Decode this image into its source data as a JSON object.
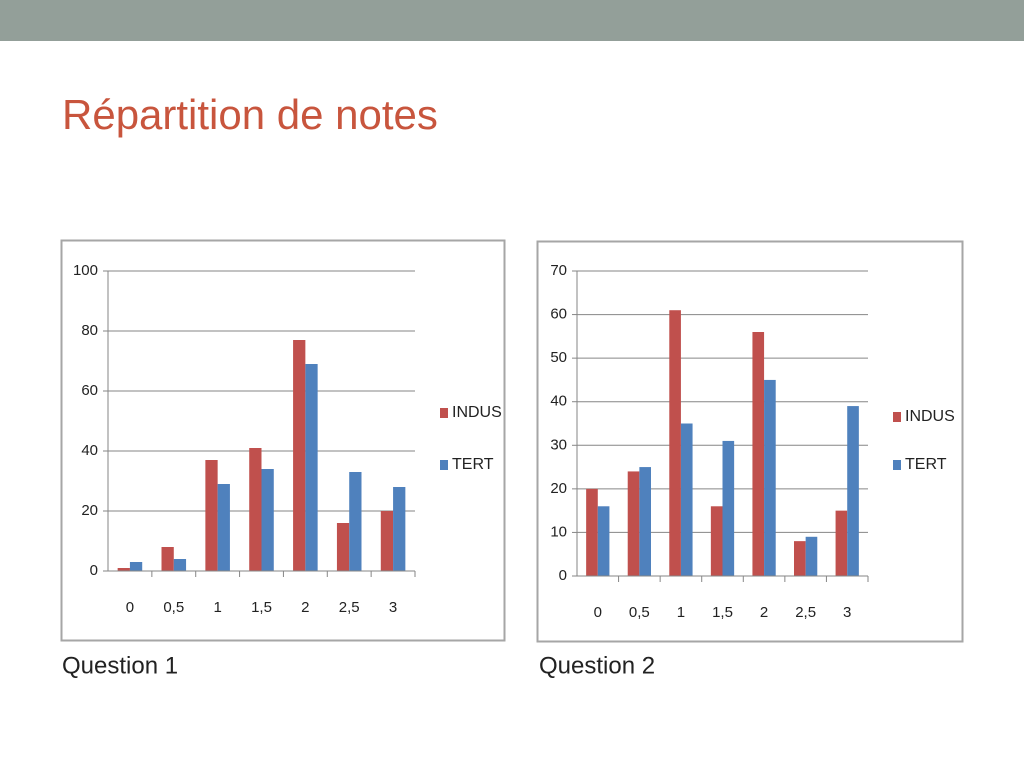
{
  "title": "Répartition de notes",
  "chart_data": [
    {
      "type": "bar",
      "caption": "Question 1",
      "categories": [
        "0",
        "0,5",
        "1",
        "1,5",
        "2",
        "2,5",
        "3"
      ],
      "series": [
        {
          "name": "INDUS",
          "color": "#c0504d",
          "values": [
            1,
            8,
            37,
            41,
            77,
            16,
            20
          ]
        },
        {
          "name": "TERT",
          "color": "#4f81bd",
          "values": [
            3,
            4,
            29,
            34,
            69,
            33,
            28
          ]
        }
      ],
      "ylim": [
        0,
        100
      ],
      "yticks": [
        0,
        20,
        40,
        60,
        80,
        100
      ],
      "grid": true,
      "legend": "right"
    },
    {
      "type": "bar",
      "caption": "Question 2",
      "categories": [
        "0",
        "0,5",
        "1",
        "1,5",
        "2",
        "2,5",
        "3"
      ],
      "series": [
        {
          "name": "INDUS",
          "color": "#c0504d",
          "values": [
            20,
            24,
            61,
            16,
            56,
            8,
            15
          ]
        },
        {
          "name": "TERT",
          "color": "#4f81bd",
          "values": [
            16,
            25,
            35,
            31,
            45,
            9,
            39
          ]
        }
      ],
      "ylim": [
        0,
        70
      ],
      "yticks": [
        0,
        10,
        20,
        30,
        40,
        50,
        60,
        70
      ],
      "grid": true,
      "legend": "right"
    }
  ]
}
